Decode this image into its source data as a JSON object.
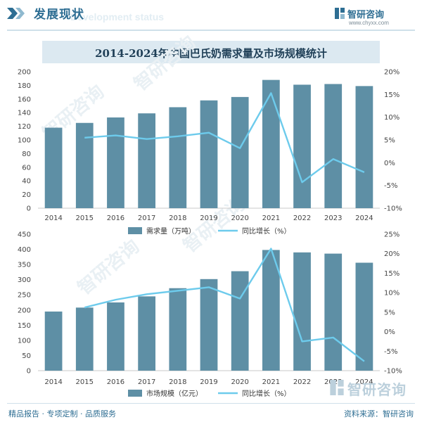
{
  "header": {
    "title": "发展现状",
    "ghost_text": "Development status",
    "brand_name": "智研咨询",
    "brand_url": "www.chyxx.com"
  },
  "chart_title": "2014-2024年中国巴氏奶需求量及市场规模统计",
  "colors": {
    "bar": "#5e8fa5",
    "line": "#6dcbec",
    "accent": "#2e6e93"
  },
  "watermark": "智研咨询",
  "footer": {
    "left": "精品报告 · 专项定制 · 品质服务",
    "right": "资料来源：智研咨询"
  },
  "chart_data": [
    {
      "type": "bar",
      "categories": [
        "2014",
        "2015",
        "2016",
        "2017",
        "2018",
        "2019",
        "2020",
        "2021",
        "2022",
        "2023",
        "2024"
      ],
      "series": [
        {
          "name": "需求量（万吨）",
          "type": "bar",
          "axis": "left",
          "values": [
            118,
            125,
            133,
            139,
            148,
            158,
            163,
            188,
            181,
            182,
            179
          ]
        },
        {
          "name": "同比增长（%）",
          "type": "line",
          "axis": "right",
          "values": [
            null,
            5.5,
            6.0,
            5.2,
            5.8,
            6.6,
            3.2,
            15.3,
            -4.3,
            0.8,
            -2.1
          ]
        }
      ],
      "y_left": {
        "min": 0,
        "max": 200,
        "step": 20,
        "ticks": [
          "0",
          "20",
          "40",
          "60",
          "80",
          "100",
          "120",
          "140",
          "160",
          "180",
          "200"
        ]
      },
      "y_right": {
        "min": -10,
        "max": 20,
        "step": 5,
        "ticks": [
          "-10%",
          "-5%",
          "0%",
          "5%",
          "10%",
          "15%",
          "20%"
        ]
      },
      "legend_placement": "bottom-center",
      "grid": false
    },
    {
      "type": "bar",
      "categories": [
        "2014",
        "2015",
        "2016",
        "2017",
        "2018",
        "2019",
        "2020",
        "2021",
        "2022",
        "2023",
        "2024"
      ],
      "series": [
        {
          "name": "市场规模（亿元）",
          "type": "bar",
          "axis": "left",
          "values": [
            195,
            208,
            225,
            245,
            272,
            302,
            328,
            398,
            390,
            386,
            356
          ]
        },
        {
          "name": "同比增长（%）",
          "type": "line",
          "axis": "right",
          "values": [
            null,
            6.2,
            8.2,
            9.6,
            10.5,
            11.4,
            8.5,
            21.3,
            -2.5,
            -1.5,
            -7.6
          ]
        }
      ],
      "y_left": {
        "min": 0,
        "max": 450,
        "step": 50,
        "ticks": [
          "0",
          "50",
          "100",
          "150",
          "200",
          "250",
          "300",
          "350",
          "400",
          "450"
        ]
      },
      "y_right": {
        "min": -10,
        "max": 25,
        "step": 5,
        "ticks": [
          "-10%",
          "-5%",
          "0%",
          "5%",
          "10%",
          "15%",
          "20%",
          "25%"
        ]
      },
      "legend_placement": "bottom-center",
      "grid": false
    }
  ]
}
